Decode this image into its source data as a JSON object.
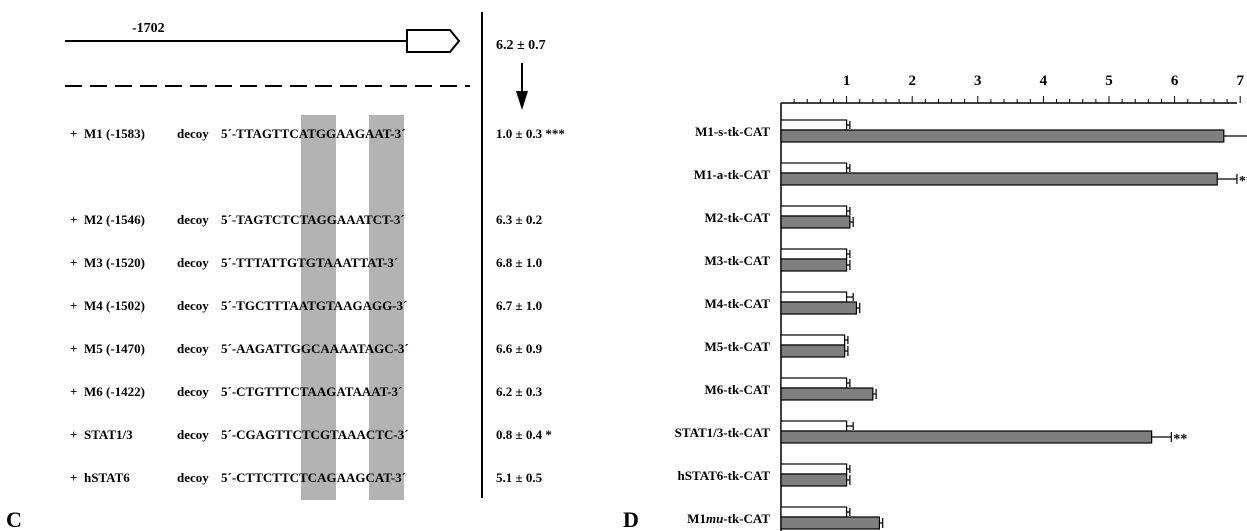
{
  "panel_c": {
    "label": "C",
    "promoter": {
      "position": "-1702",
      "fold_induction": "6.2 ± 0.7"
    },
    "decoy_word": "decoy",
    "rows": [
      {
        "plus": "+",
        "name": "M1 (-1583)",
        "seq": "5´-TTAGTTCATGGAAGAAT-3´",
        "result": "1.0 ± 0.3 ***"
      },
      {
        "plus": "+",
        "name": "M2 (-1546)",
        "seq": "5´-TAGTCTCTAGGAAATCT-3´",
        "result": "6.3 ± 0.2"
      },
      {
        "plus": "+",
        "name": "M3 (-1520)",
        "seq": "5´-TTTATTGTGTAAATTAT-3´",
        "result": "6.8 ± 1.0"
      },
      {
        "plus": "+",
        "name": "M4 (-1502)",
        "seq": "5´-TGCTTTAATGTAAGAGG-3´",
        "result": "6.7 ± 1.0"
      },
      {
        "plus": "+",
        "name": "M5 (-1470)",
        "seq": "5´-AAGATTGGCAAAATAGC-3´",
        "result": "6.6 ± 0.9"
      },
      {
        "plus": "+",
        "name": "M6 (-1422)",
        "seq": "5´-CTGTTTCTAAGATAAAT-3´",
        "result": "6.2 ± 0.3"
      },
      {
        "plus": "+",
        "name": "STAT1/3",
        "seq": "5´-CGAGTTCTCGTAAACTC-3´",
        "result": "0.8 ± 0.4 *"
      },
      {
        "plus": "+",
        "name": "hSTAT6",
        "seq": "5´-CTTCTTCTCAGAAGCAT-3´",
        "result": "5.1 ± 0.5"
      }
    ],
    "colors": {
      "highlight": "#b3b3b3"
    }
  },
  "panel_d": {
    "label": "D"
  },
  "chart_data": {
    "type": "bar",
    "orientation": "horizontal",
    "categories": [
      "M1-s-tk-CAT",
      "M1-a-tk-CAT",
      "M2-tk-CAT",
      "M3-tk-CAT",
      "M4-tk-CAT",
      "M5-tk-CAT",
      "M6-tk-CAT",
      "STAT1/3-tk-CAT",
      "hSTAT6-tk-CAT",
      "M1mu-tk-CAT"
    ],
    "category_labels": [
      {
        "main": "M1-s-tk-CAT"
      },
      {
        "main": "M1-a-tk-CAT"
      },
      {
        "main": "M2-tk-CAT"
      },
      {
        "main": "M3-tk-CAT"
      },
      {
        "main": "M4-tk-CAT"
      },
      {
        "main": "M5-tk-CAT"
      },
      {
        "main": "M6-tk-CAT"
      },
      {
        "main": "STAT1/3-tk-CAT"
      },
      {
        "main": "hSTAT6-tk-CAT"
      },
      {
        "pre": "M1",
        "ital": "mu",
        "post": "-tk-CAT"
      }
    ],
    "series": [
      {
        "values": [
          1.0,
          1.0,
          1.0,
          1.0,
          1.0,
          0.97,
          1.0,
          1.0,
          1.0,
          1.0
        ],
        "errors": [
          0.05,
          0.05,
          0.05,
          0.05,
          0.1,
          0.05,
          0.05,
          0.1,
          0.05,
          0.05
        ],
        "color": "#ffffff"
      },
      {
        "values": [
          6.75,
          6.65,
          1.05,
          1.0,
          1.15,
          0.97,
          1.4,
          5.65,
          1.0,
          1.5
        ],
        "errors": [
          0.55,
          0.3,
          0.05,
          0.05,
          0.05,
          0.05,
          0.05,
          0.3,
          0.05,
          0.05
        ],
        "color": "#7f7f7f"
      }
    ],
    "significance": [
      "*",
      "**",
      "",
      "",
      "",
      "",
      "",
      "**",
      "",
      ""
    ],
    "xticks": [
      "1",
      "2",
      "3",
      "4",
      "5",
      "6",
      "7"
    ],
    "xlim": [
      0,
      7.35
    ]
  }
}
